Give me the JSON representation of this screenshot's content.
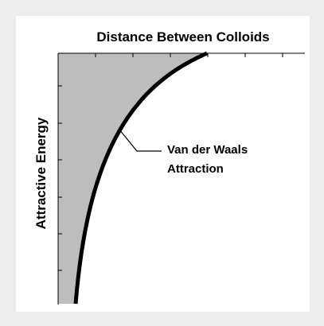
{
  "diagram": {
    "x_axis_label": "Distance Between Colloids",
    "y_axis_label": "Attractive Energy",
    "curve_label": {
      "line1": "Van der Waals",
      "line2": "Attraction"
    }
  }
}
